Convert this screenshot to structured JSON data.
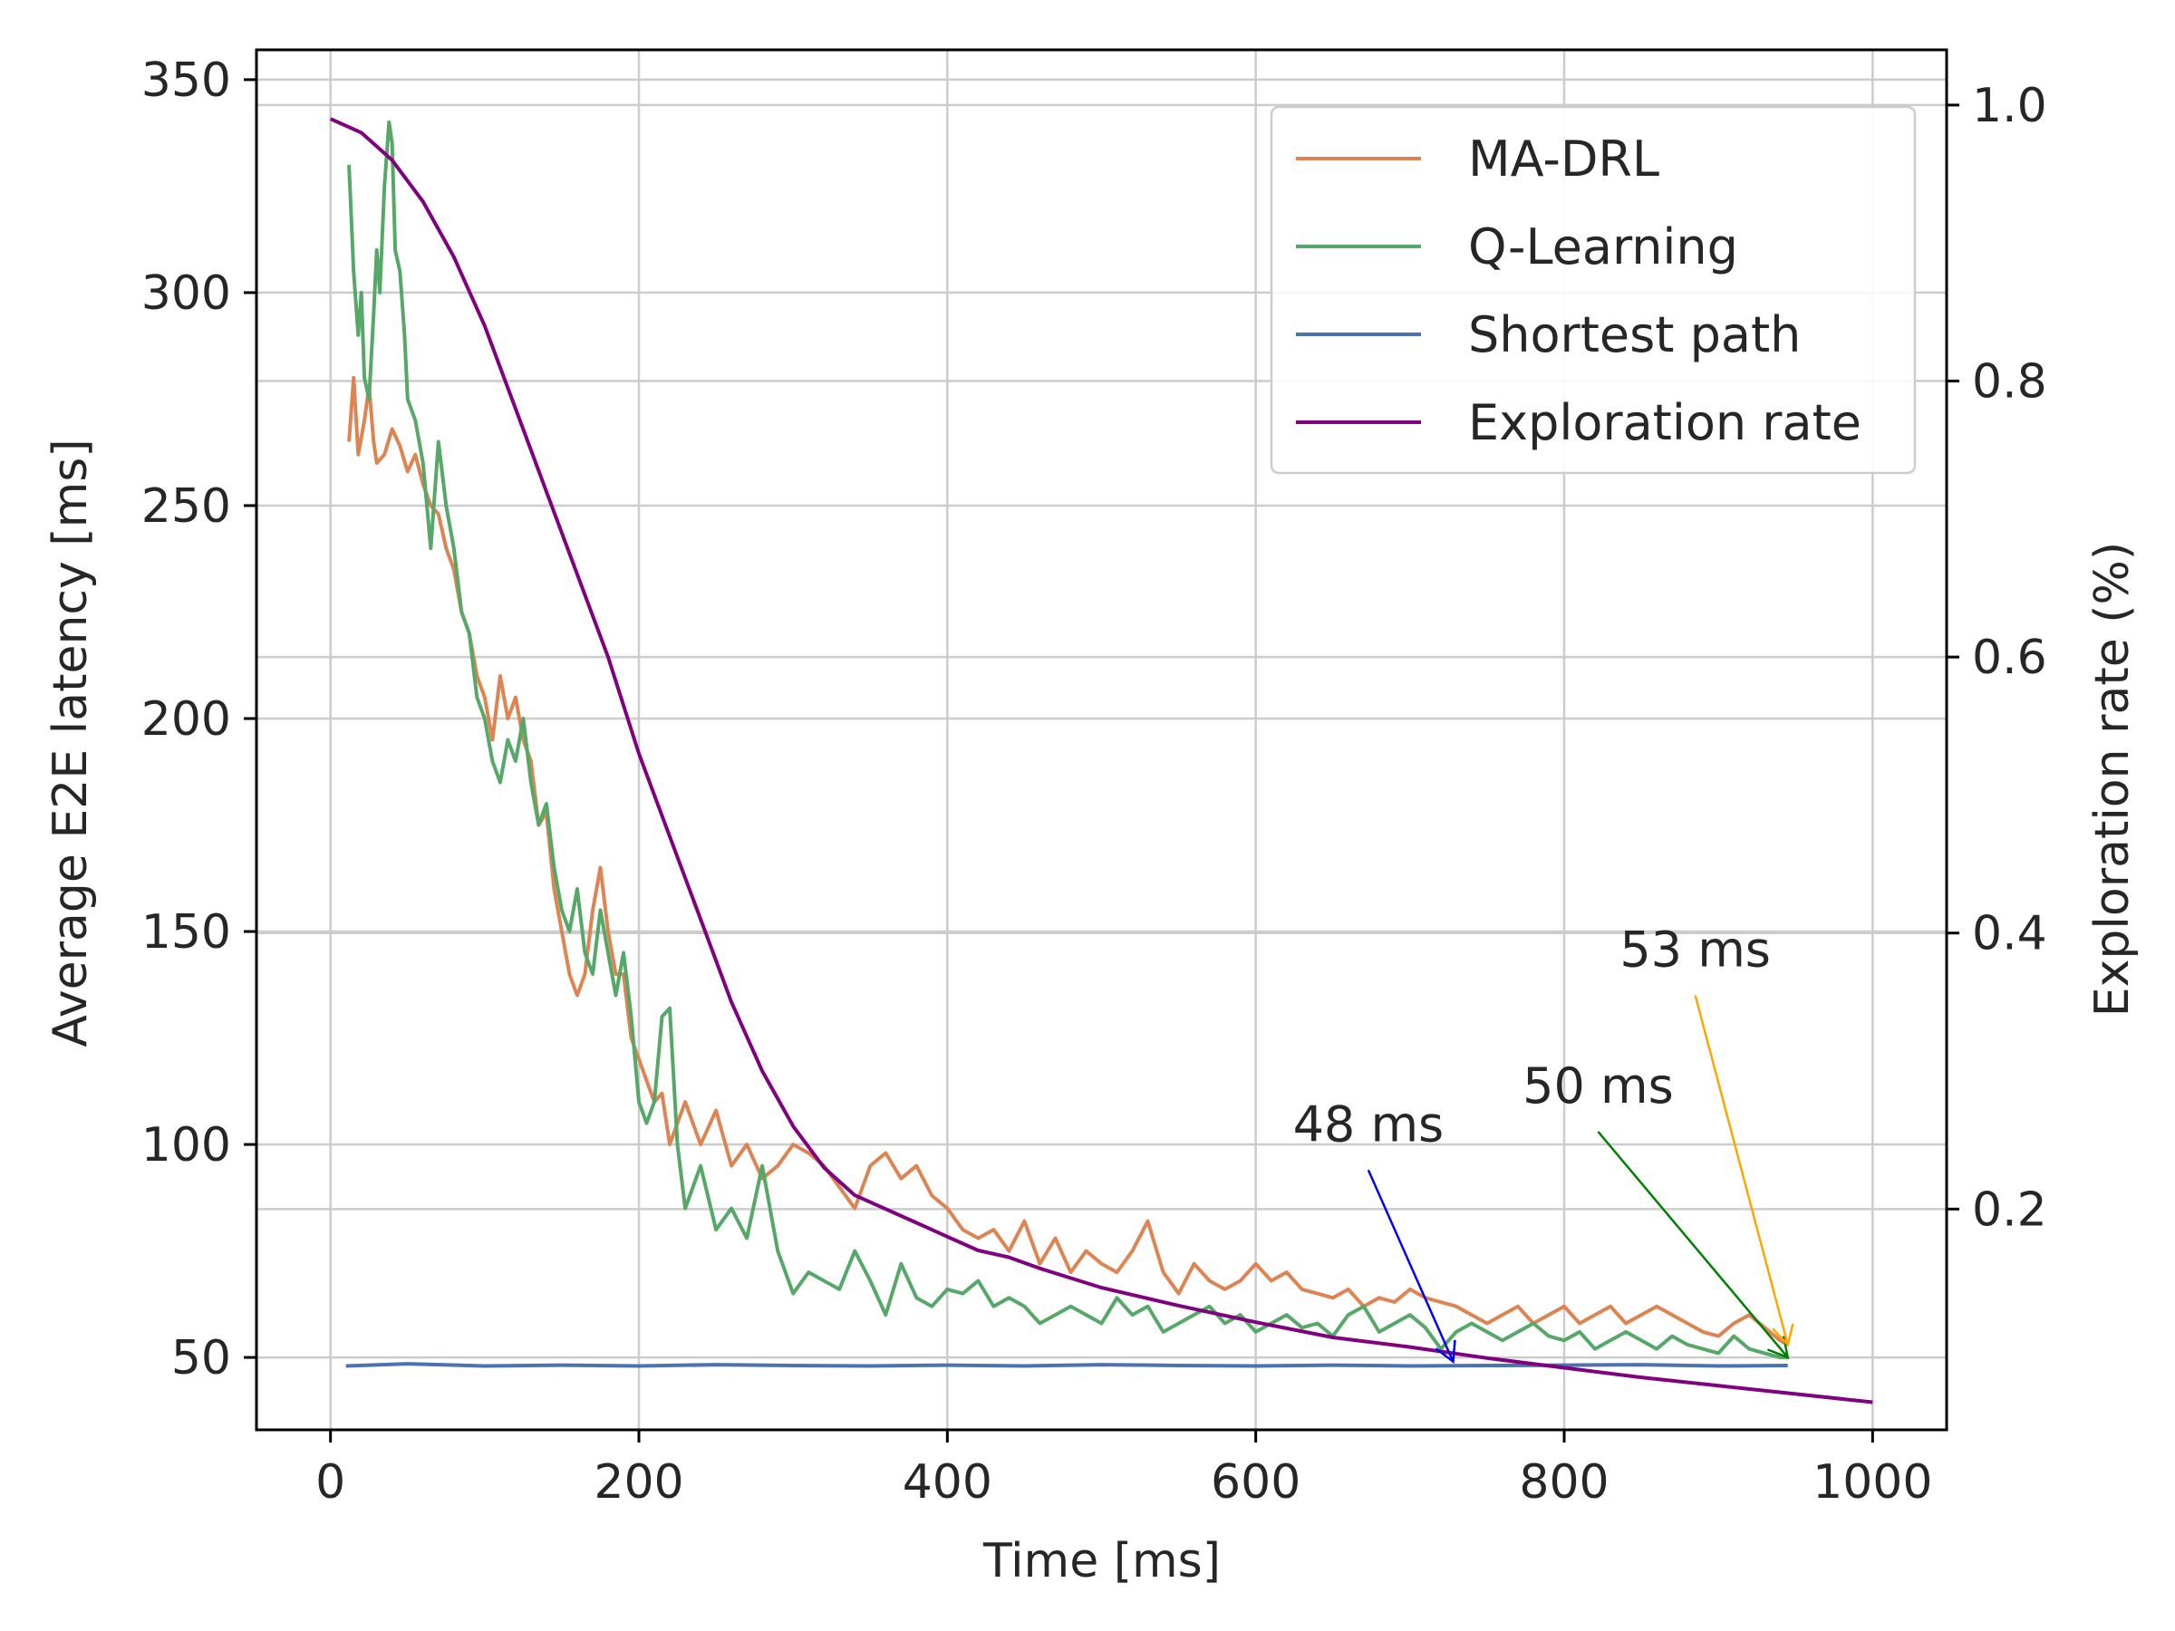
{
  "chart_data": {
    "type": "line",
    "xlabel": "Time [ms]",
    "ylabel": "Average E2E latency [ms]",
    "y2label": "Exploration rate (%)",
    "xlim": [
      -48,
      1048
    ],
    "ylim": [
      33,
      357
    ],
    "y2lim": [
      0.04,
      1.04
    ],
    "xticks": [
      0,
      200,
      400,
      600,
      800,
      1000
    ],
    "yticks": [
      50,
      100,
      150,
      200,
      250,
      300,
      350
    ],
    "y2ticks": [
      0.2,
      0.4,
      0.6,
      0.8,
      1.0
    ],
    "xtick_labels": [
      "0",
      "200",
      "400",
      "600",
      "800",
      "1000"
    ],
    "ytick_labels": [
      "50",
      "100",
      "150",
      "200",
      "250",
      "300",
      "350"
    ],
    "y2tick_labels": [
      "0.2",
      "0.4",
      "0.6",
      "0.8",
      "1.0"
    ],
    "grid": true,
    "legend_position": "top-right",
    "series": [
      {
        "name": "MA-DRL",
        "color": "#dd8452",
        "axis": "left",
        "x": [
          12,
          15,
          18,
          22,
          25,
          28,
          30,
          35,
          40,
          45,
          50,
          55,
          60,
          65,
          70,
          75,
          80,
          85,
          90,
          95,
          100,
          105,
          110,
          115,
          120,
          125,
          130,
          135,
          140,
          145,
          150,
          155,
          160,
          165,
          170,
          175,
          180,
          185,
          190,
          195,
          200,
          205,
          210,
          215,
          220,
          225,
          230,
          240,
          250,
          260,
          270,
          280,
          290,
          300,
          310,
          320,
          330,
          340,
          350,
          360,
          370,
          380,
          390,
          400,
          410,
          420,
          430,
          440,
          450,
          460,
          470,
          480,
          490,
          500,
          510,
          520,
          530,
          540,
          550,
          560,
          570,
          580,
          590,
          600,
          610,
          620,
          630,
          640,
          650,
          660,
          670,
          680,
          690,
          700,
          710,
          720,
          730,
          740,
          750,
          760,
          770,
          780,
          790,
          800,
          810,
          820,
          830,
          840,
          850,
          860,
          870,
          880,
          890,
          900,
          910,
          920,
          930,
          940,
          945
        ],
        "values": [
          265,
          280,
          262,
          270,
          278,
          265,
          260,
          262,
          268,
          264,
          258,
          262,
          255,
          250,
          248,
          240,
          235,
          225,
          220,
          210,
          205,
          195,
          210,
          200,
          205,
          195,
          190,
          175,
          178,
          160,
          150,
          140,
          135,
          140,
          155,
          165,
          150,
          140,
          140,
          125,
          120,
          115,
          110,
          112,
          100,
          105,
          110,
          100,
          108,
          95,
          100,
          92,
          95,
          100,
          98,
          95,
          90,
          85,
          95,
          98,
          92,
          95,
          88,
          85,
          80,
          78,
          80,
          75,
          82,
          72,
          78,
          70,
          75,
          72,
          70,
          75,
          82,
          70,
          65,
          72,
          68,
          66,
          68,
          72,
          68,
          70,
          66,
          65,
          64,
          66,
          62,
          64,
          63,
          66,
          64,
          63,
          62,
          60,
          58,
          60,
          62,
          58,
          60,
          62,
          58,
          60,
          62,
          58,
          60,
          62,
          60,
          58,
          56,
          55,
          58,
          60,
          57,
          54,
          53
        ]
      },
      {
        "name": "Q-Learning",
        "color": "#55a868",
        "axis": "left",
        "x": [
          12,
          15,
          18,
          20,
          22,
          25,
          28,
          30,
          32,
          35,
          38,
          40,
          42,
          45,
          48,
          50,
          55,
          60,
          65,
          70,
          75,
          80,
          85,
          90,
          95,
          100,
          105,
          110,
          115,
          120,
          125,
          130,
          135,
          140,
          145,
          150,
          155,
          160,
          165,
          170,
          175,
          180,
          185,
          190,
          195,
          200,
          205,
          210,
          215,
          220,
          225,
          230,
          235,
          240,
          250,
          260,
          270,
          280,
          290,
          300,
          310,
          320,
          330,
          340,
          350,
          360,
          370,
          380,
          390,
          400,
          410,
          420,
          430,
          440,
          450,
          460,
          470,
          480,
          490,
          500,
          510,
          520,
          530,
          540,
          550,
          560,
          570,
          580,
          590,
          600,
          610,
          620,
          630,
          640,
          650,
          660,
          670,
          680,
          690,
          700,
          710,
          720,
          730,
          740,
          750,
          760,
          770,
          780,
          790,
          800,
          810,
          820,
          830,
          840,
          850,
          860,
          870,
          880,
          890,
          900,
          910,
          920,
          930,
          940,
          945
        ],
        "values": [
          330,
          305,
          290,
          300,
          280,
          275,
          295,
          310,
          300,
          325,
          340,
          335,
          310,
          305,
          290,
          275,
          270,
          260,
          240,
          265,
          250,
          240,
          225,
          220,
          205,
          200,
          190,
          185,
          195,
          190,
          200,
          185,
          175,
          180,
          165,
          155,
          150,
          160,
          145,
          140,
          155,
          145,
          135,
          145,
          130,
          110,
          105,
          110,
          130,
          132,
          100,
          85,
          90,
          95,
          80,
          85,
          78,
          95,
          75,
          65,
          70,
          68,
          66,
          75,
          68,
          60,
          72,
          64,
          62,
          66,
          65,
          68,
          62,
          64,
          62,
          58,
          60,
          62,
          60,
          58,
          64,
          60,
          62,
          56,
          58,
          60,
          62,
          58,
          60,
          56,
          58,
          60,
          57,
          58,
          55,
          60,
          62,
          56,
          58,
          60,
          57,
          52,
          56,
          58,
          56,
          54,
          56,
          58,
          55,
          54,
          56,
          52,
          54,
          56,
          54,
          52,
          55,
          53,
          52,
          51,
          55,
          52,
          51,
          50,
          50
        ]
      },
      {
        "name": "Shortest path",
        "color": "#4c72b0",
        "axis": "left",
        "x": [
          10,
          50,
          100,
          150,
          200,
          250,
          300,
          350,
          400,
          450,
          500,
          550,
          600,
          650,
          700,
          750,
          800,
          850,
          900,
          945
        ],
        "values": [
          48,
          48.5,
          48,
          48.2,
          48,
          48.3,
          48.1,
          48,
          48.2,
          48,
          48.3,
          48.1,
          48,
          48.2,
          48,
          48.1,
          48.2,
          48.3,
          48,
          48.1
        ]
      },
      {
        "name": "Exploration rate",
        "color": "#800080",
        "axis": "right",
        "x": [
          0,
          20,
          40,
          60,
          80,
          100,
          120,
          140,
          160,
          180,
          200,
          220,
          240,
          260,
          280,
          300,
          320,
          340,
          360,
          380,
          400,
          420,
          440,
          460,
          480,
          500,
          550,
          600,
          650,
          700,
          750,
          800,
          850,
          900,
          950,
          1000
        ],
        "values": [
          0.99,
          0.98,
          0.96,
          0.93,
          0.89,
          0.84,
          0.78,
          0.72,
          0.66,
          0.6,
          0.53,
          0.47,
          0.41,
          0.35,
          0.3,
          0.26,
          0.23,
          0.21,
          0.2,
          0.19,
          0.18,
          0.17,
          0.165,
          0.157,
          0.15,
          0.143,
          0.13,
          0.118,
          0.107,
          0.1,
          0.092,
          0.085,
          0.078,
          0.072,
          0.066,
          0.06
        ]
      }
    ],
    "annotations": [
      {
        "text": "48 ms",
        "color": "#0000ff",
        "tail": [
          673,
          94
        ],
        "head": [
          728,
          49
        ]
      },
      {
        "text": "50 ms",
        "color": "#008000",
        "tail": [
          822,
          103
        ],
        "head": [
          945,
          50
        ]
      },
      {
        "text": "53 ms",
        "color": "#ffa500",
        "tail": [
          885,
          135
        ],
        "head": [
          945,
          53
        ]
      }
    ]
  }
}
